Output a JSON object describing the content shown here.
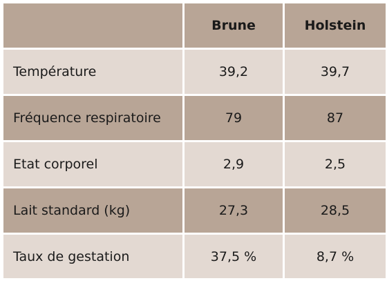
{
  "table": {
    "headers": [
      "",
      "Brune",
      "Holstein"
    ],
    "rows": [
      {
        "label": "Température",
        "brune": "39,2",
        "holstein": "39,7"
      },
      {
        "label": "Fréquence respiratoire",
        "brune": "79",
        "holstein": "87"
      },
      {
        "label": "Etat corporel",
        "brune": "2,9",
        "holstein": "2,5"
      },
      {
        "label": "Lait standard (kg)",
        "brune": "27,3",
        "holstein": "28,5"
      },
      {
        "label": "Taux de gestation",
        "brune": "37,5 %",
        "holstein": "8,7 %"
      }
    ]
  },
  "colors": {
    "header_row": "#b8a596",
    "alt_dark_row": "#b8a596",
    "alt_light_row": "#e3d9d2",
    "grid": "#ffffff"
  }
}
